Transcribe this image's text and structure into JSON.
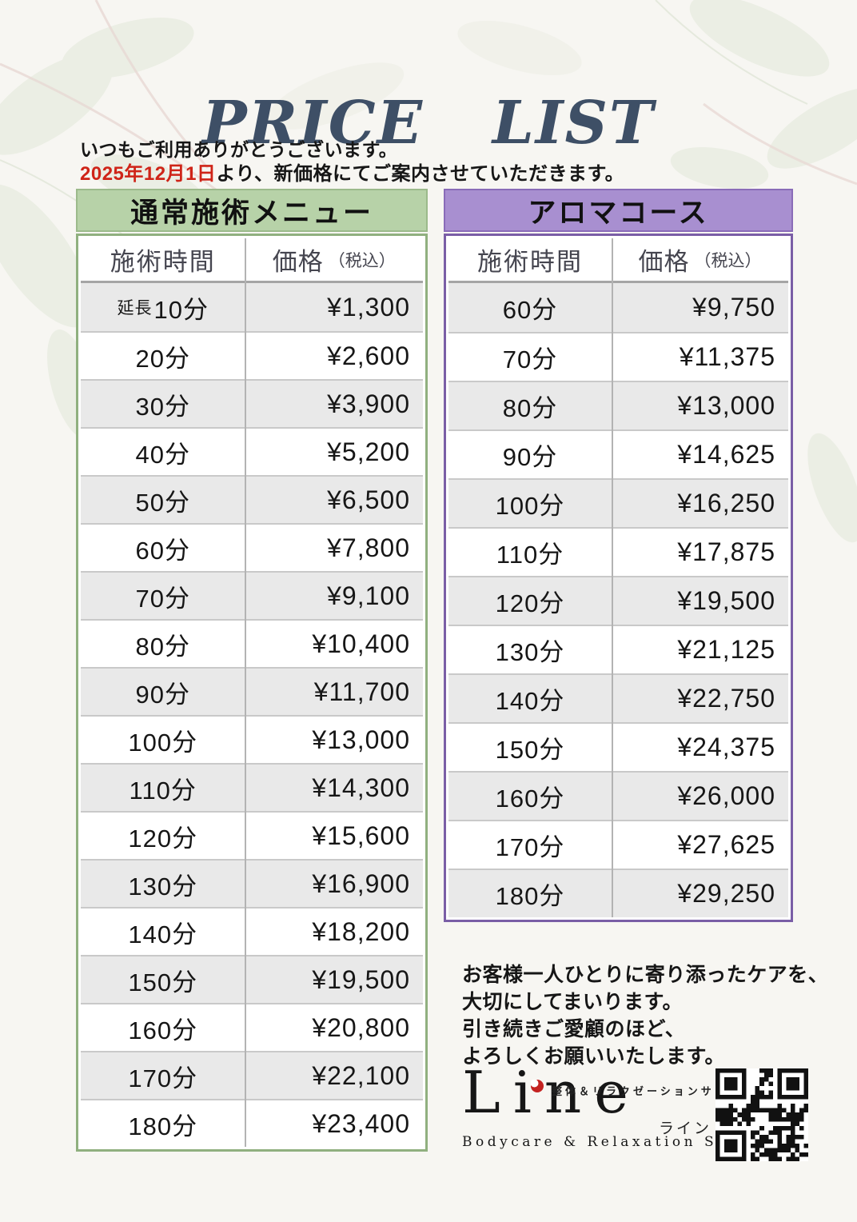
{
  "page": {
    "title": "PRICE LIST",
    "greeting": "いつもご利用ありがとうございます。",
    "notice_date": "2025年12月1日",
    "notice_rest": "より、新価格にてご案内させていただきます。"
  },
  "tables": {
    "regular": {
      "title": "通常施術メニュー",
      "col_time": "施術時間",
      "col_price": "価格",
      "col_price_note": "（税込）",
      "rows": [
        {
          "time_small": "延長",
          "time": "10分",
          "price": "¥1,300"
        },
        {
          "time": "20分",
          "price": "¥2,600"
        },
        {
          "time": "30分",
          "price": "¥3,900"
        },
        {
          "time": "40分",
          "price": "¥5,200"
        },
        {
          "time": "50分",
          "price": "¥6,500"
        },
        {
          "time": "60分",
          "price": "¥7,800"
        },
        {
          "time": "70分",
          "price": "¥9,100"
        },
        {
          "time": "80分",
          "price": "¥10,400"
        },
        {
          "time": "90分",
          "price": "¥11,700"
        },
        {
          "time": "100分",
          "price": "¥13,000"
        },
        {
          "time": "110分",
          "price": "¥14,300"
        },
        {
          "time": "120分",
          "price": "¥15,600"
        },
        {
          "time": "130分",
          "price": "¥16,900"
        },
        {
          "time": "140分",
          "price": "¥18,200"
        },
        {
          "time": "150分",
          "price": "¥19,500"
        },
        {
          "time": "160分",
          "price": "¥20,800"
        },
        {
          "time": "170分",
          "price": "¥22,100"
        },
        {
          "time": "180分",
          "price": "¥23,400"
        }
      ]
    },
    "aroma": {
      "title": "アロマコース",
      "col_time": "施術時間",
      "col_price": "価格",
      "col_price_note": "（税込）",
      "rows": [
        {
          "time": "60分",
          "price": "¥9,750"
        },
        {
          "time": "70分",
          "price": "¥11,375"
        },
        {
          "time": "80分",
          "price": "¥13,000"
        },
        {
          "time": "90分",
          "price": "¥14,625"
        },
        {
          "time": "100分",
          "price": "¥16,250"
        },
        {
          "time": "110分",
          "price": "¥17,875"
        },
        {
          "time": "120分",
          "price": "¥19,500"
        },
        {
          "time": "130分",
          "price": "¥21,125"
        },
        {
          "time": "140分",
          "price": "¥22,750"
        },
        {
          "time": "150分",
          "price": "¥24,375"
        },
        {
          "time": "160分",
          "price": "¥26,000"
        },
        {
          "time": "170分",
          "price": "¥27,625"
        },
        {
          "time": "180分",
          "price": "¥29,250"
        }
      ]
    }
  },
  "footer": {
    "message_lines": [
      "お客様一人ひとりに寄り添ったケアを、",
      "大切にしてまいります。",
      "引き続きご愛顧のほど、",
      "よろしくお願いいたします。"
    ],
    "logo": {
      "name": "Line",
      "kana": "ライン",
      "tagline_jp": "整体＆リラクゼーションサロン",
      "tagline_en": "Bodycare & Relaxation Salon"
    }
  },
  "theme": {
    "page_bg": "#f7f6f2",
    "title_color": "#3e4f66",
    "red_accent": "#cf2418",
    "green_header": "#b7d2a8",
    "green_border": "#90b07f",
    "purple_header": "#a88fd0",
    "purple_border": "#7a5ea6",
    "row_gray": "#e9e9e9",
    "header_text": "#45454f",
    "text_black": "#161616"
  }
}
